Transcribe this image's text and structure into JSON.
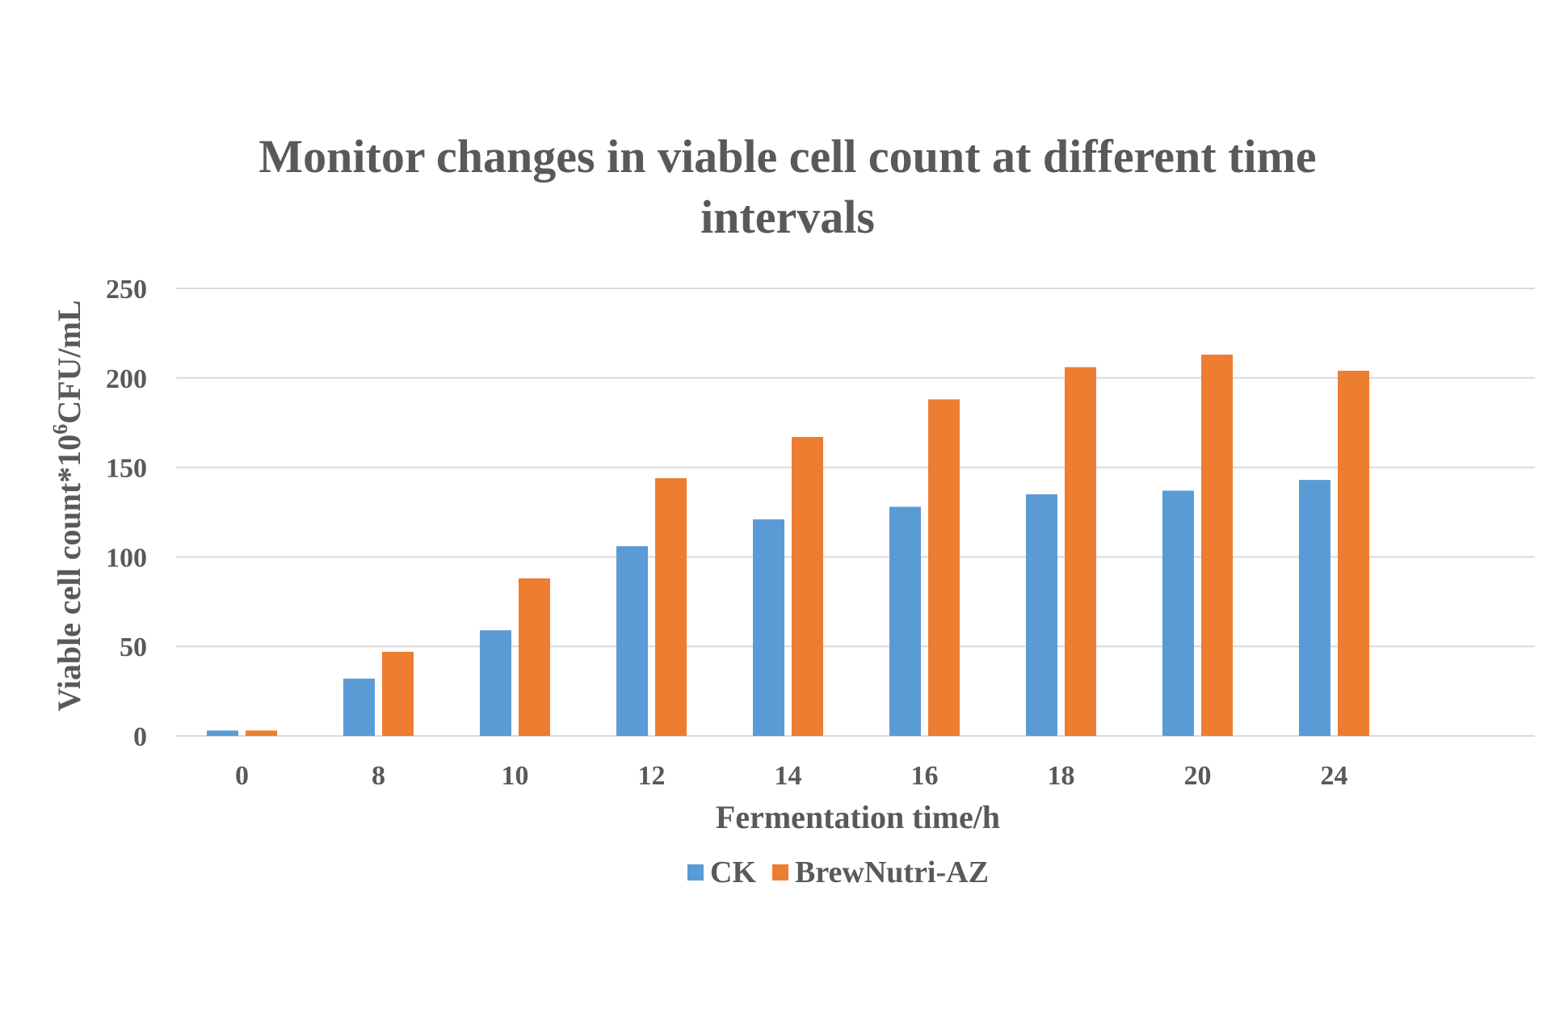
{
  "chart_data": {
    "type": "bar",
    "title_line1": "Monitor changes in viable cell count at different time",
    "title_line2": "intervals",
    "xlabel": "Fermentation time/h",
    "ylabel_main": "Viable cell count*10",
    "ylabel_sup": "6",
    "ylabel_unit": "CFU/mL",
    "categories": [
      "0",
      "8",
      "10",
      "12",
      "14",
      "16",
      "18",
      "20",
      "24"
    ],
    "yticks": [
      "0",
      "50",
      "100",
      "150",
      "200",
      "250"
    ],
    "ylim": [
      0,
      250
    ],
    "grid": true,
    "legend_position": "bottom",
    "series": [
      {
        "name": "CK",
        "color": "#5B9BD5",
        "values": [
          3,
          32,
          59,
          106,
          121,
          128,
          135,
          137,
          143
        ]
      },
      {
        "name": "BrewNutri-AZ",
        "color": "#ED7D31",
        "values": [
          3,
          47,
          88,
          144,
          167,
          188,
          206,
          213,
          204
        ]
      }
    ]
  }
}
